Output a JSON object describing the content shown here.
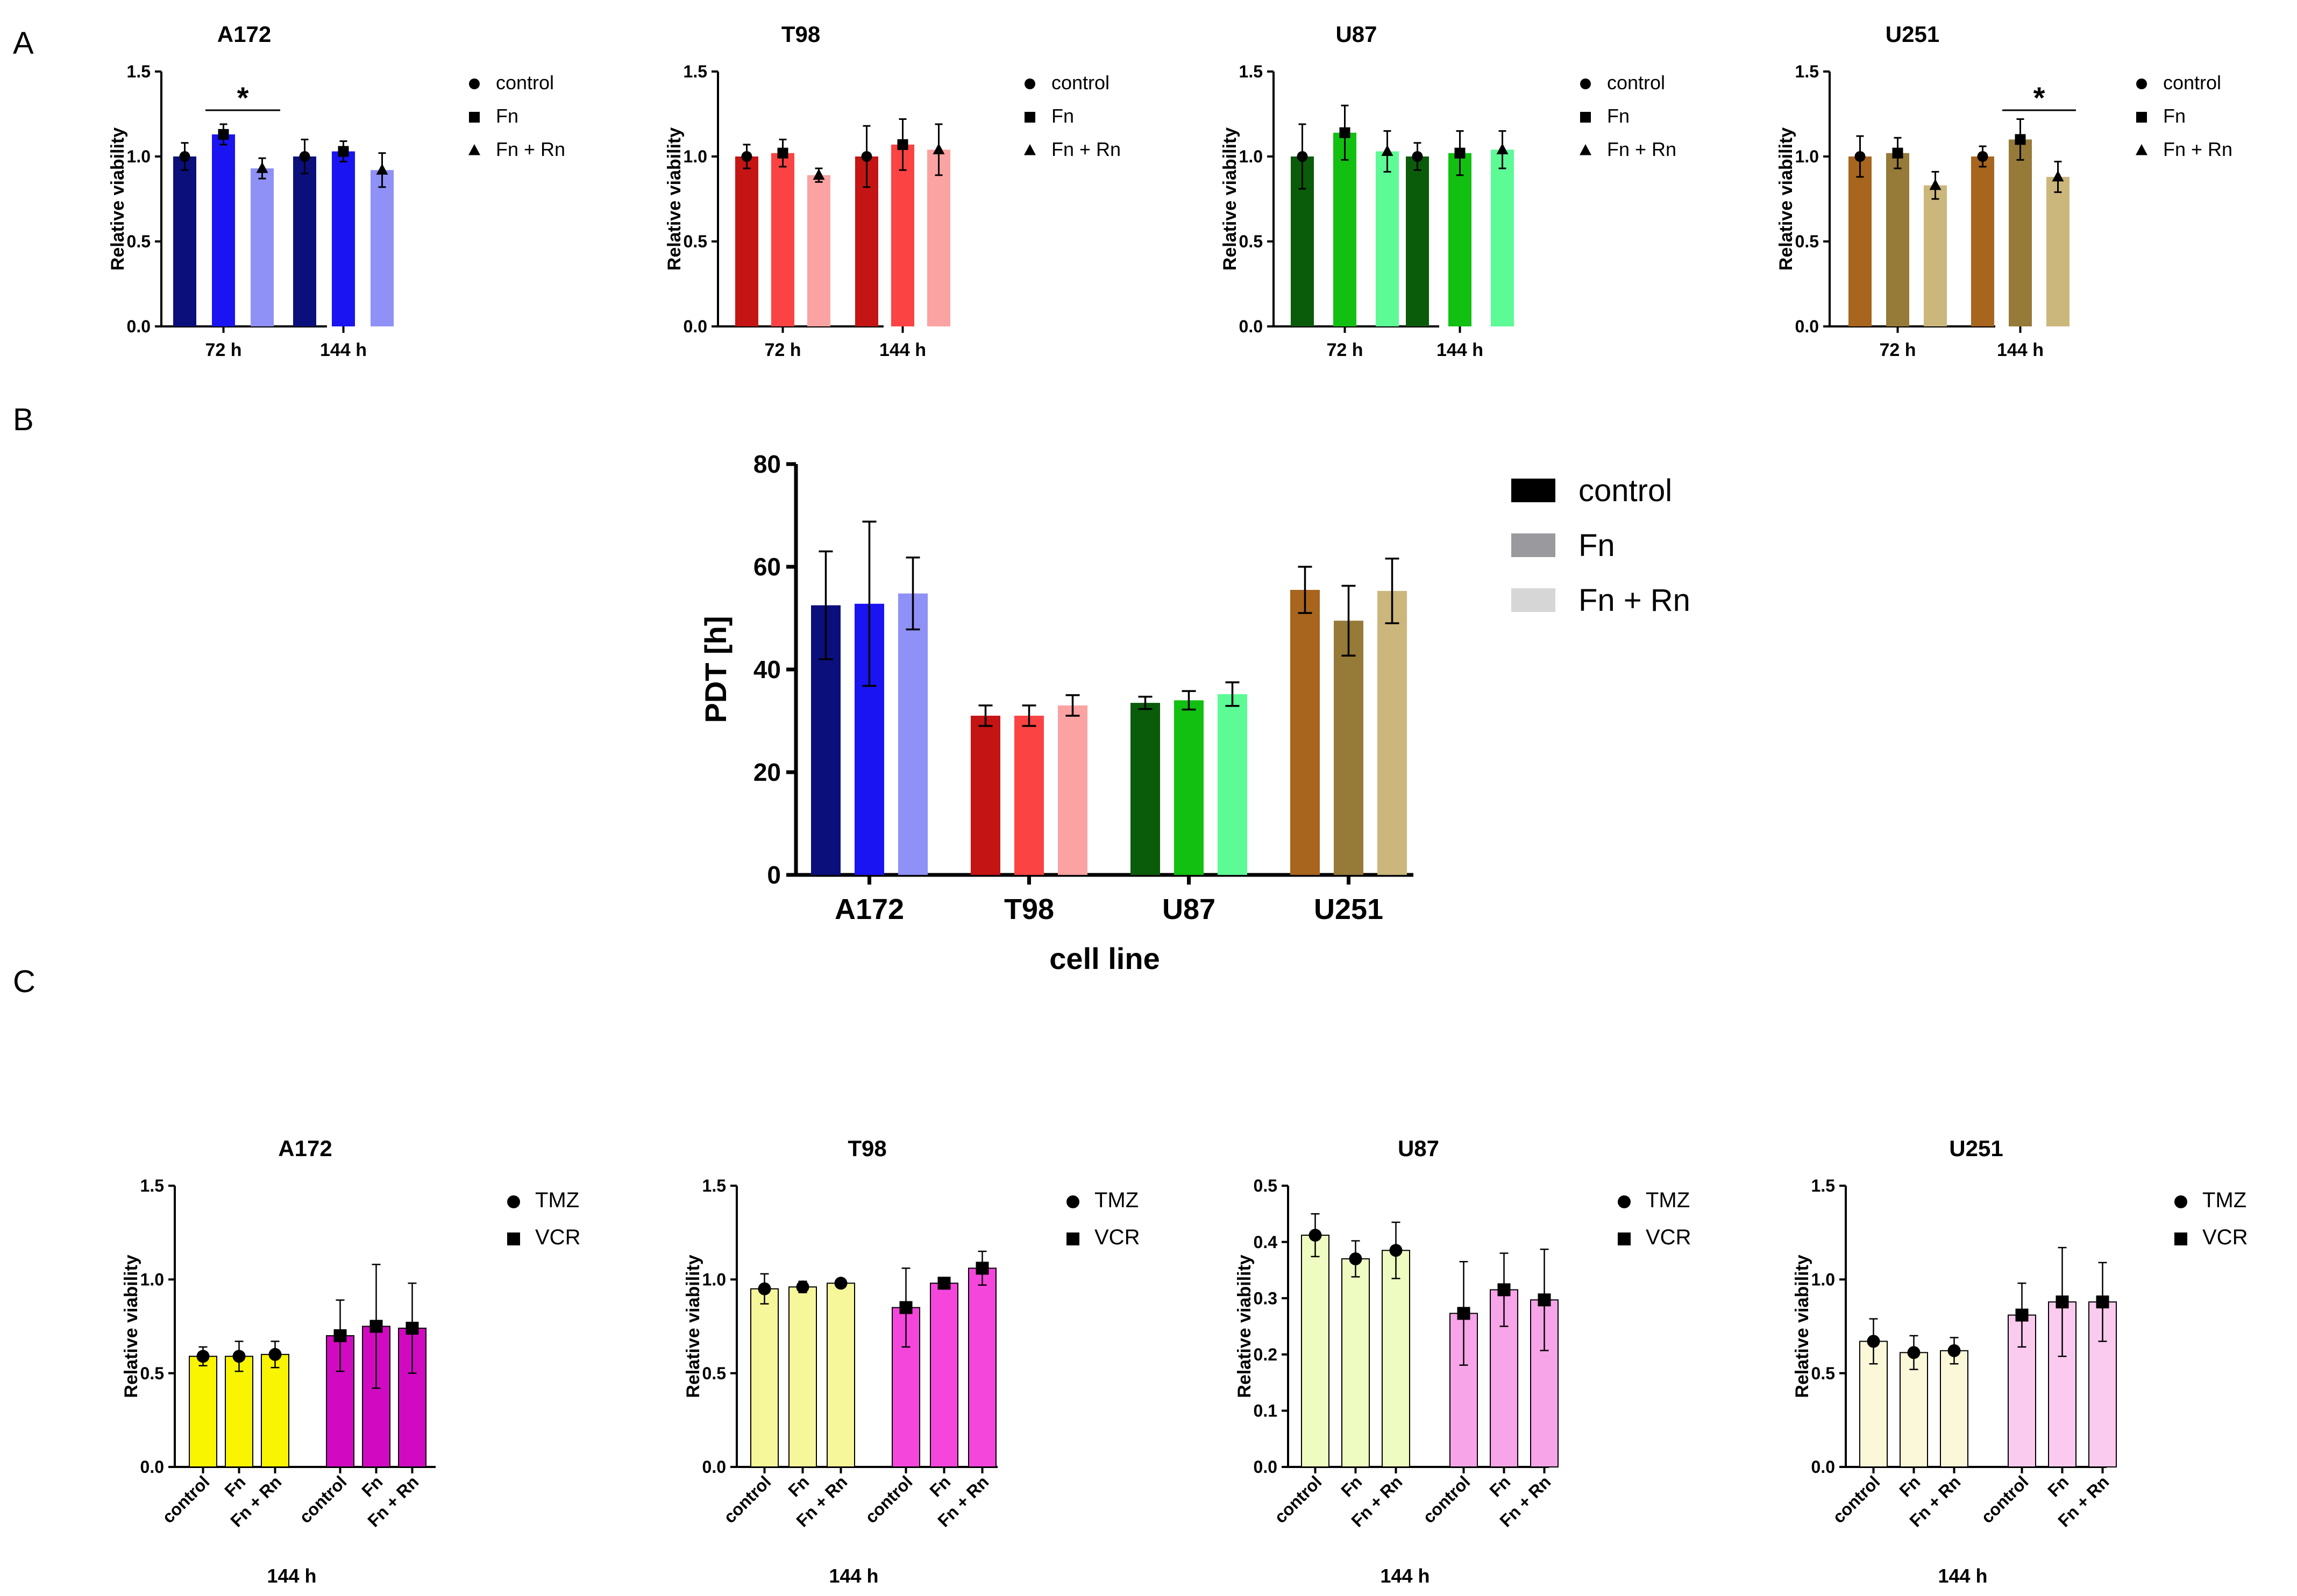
{
  "figure": {
    "panel_labels": [
      "A",
      "B",
      "C"
    ]
  },
  "colors": {
    "A172": [
      "#0b0f7c",
      "#1a14f2",
      "#8f91f7"
    ],
    "T98": [
      "#c41414",
      "#fb4343",
      "#fba2a2"
    ],
    "U87": [
      "#0a5c0a",
      "#12c012",
      "#5dfb96"
    ],
    "U251": [
      "#a8651d",
      "#957a38",
      "#cbb67c"
    ],
    "B_legend": [
      "#000000",
      "#9a9a9e",
      "#d6d6d6"
    ],
    "C_A172": [
      "#f9f400",
      "#d10ac2"
    ],
    "C_T98": [
      "#f6f79b",
      "#f546dc"
    ],
    "C_U87": [
      "#eefcc1",
      "#f7a4e8"
    ],
    "C_U251": [
      "#fbf7d9",
      "#fbcbef"
    ]
  },
  "chart_data": [
    {
      "panel": "A",
      "id": "A-A172",
      "type": "bar",
      "title": "A172",
      "ylabel": "Relative viability",
      "xlabel": "",
      "ylim": [
        0,
        1.5
      ],
      "yticks": [
        "0.0",
        "0.5",
        "1.0",
        "1.5"
      ],
      "categories": [
        "72 h",
        "144 h"
      ],
      "legend": [
        "control",
        "Fn",
        "Fn + Rn"
      ],
      "legend_markers": [
        "circle",
        "square",
        "triangle"
      ],
      "series": [
        {
          "name": "control",
          "values": [
            1.0,
            1.0
          ],
          "errors": [
            0.08,
            0.1
          ]
        },
        {
          "name": "Fn",
          "values": [
            1.13,
            1.03
          ],
          "errors": [
            0.06,
            0.06
          ]
        },
        {
          "name": "Fn + Rn",
          "values": [
            0.93,
            0.92
          ],
          "errors": [
            0.06,
            0.1
          ]
        }
      ],
      "significance": {
        "label": "*",
        "group": 0,
        "from": 1,
        "to": 2
      }
    },
    {
      "panel": "A",
      "id": "A-T98",
      "type": "bar",
      "title": "T98",
      "ylabel": "Relative viability",
      "xlabel": "",
      "ylim": [
        0,
        1.5
      ],
      "yticks": [
        "0.0",
        "0.5",
        "1.0",
        "1.5"
      ],
      "categories": [
        "72 h",
        "144 h"
      ],
      "legend": [
        "control",
        "Fn",
        "Fn + Rn"
      ],
      "legend_markers": [
        "circle",
        "square",
        "triangle"
      ],
      "series": [
        {
          "name": "control",
          "values": [
            1.0,
            1.0
          ],
          "errors": [
            0.07,
            0.18
          ]
        },
        {
          "name": "Fn",
          "values": [
            1.02,
            1.07
          ],
          "errors": [
            0.08,
            0.15
          ]
        },
        {
          "name": "Fn + Rn",
          "values": [
            0.89,
            1.04
          ],
          "errors": [
            0.04,
            0.15
          ]
        }
      ]
    },
    {
      "panel": "A",
      "id": "A-U87",
      "type": "bar",
      "title": "U87",
      "ylabel": "Relative viability",
      "xlabel": "",
      "ylim": [
        0,
        1.5
      ],
      "yticks": [
        "0.0",
        "0.5",
        "1.0",
        "1.5"
      ],
      "categories": [
        "72 h",
        "144 h"
      ],
      "legend": [
        "control",
        "Fn",
        "Fn + Rn"
      ],
      "legend_markers": [
        "circle",
        "square",
        "triangle"
      ],
      "series": [
        {
          "name": "control",
          "values": [
            1.0,
            1.0
          ],
          "errors": [
            0.19,
            0.08
          ]
        },
        {
          "name": "Fn",
          "values": [
            1.14,
            1.02
          ],
          "errors": [
            0.16,
            0.13
          ]
        },
        {
          "name": "Fn + Rn",
          "values": [
            1.03,
            1.04
          ],
          "errors": [
            0.12,
            0.11
          ]
        }
      ]
    },
    {
      "panel": "A",
      "id": "A-U251",
      "type": "bar",
      "title": "U251",
      "ylabel": "Relative viability",
      "xlabel": "",
      "ylim": [
        0,
        1.5
      ],
      "yticks": [
        "0.0",
        "0.5",
        "1.0",
        "1.5"
      ],
      "categories": [
        "72 h",
        "144 h"
      ],
      "legend": [
        "control",
        "Fn",
        "Fn + Rn"
      ],
      "legend_markers": [
        "circle",
        "square",
        "triangle"
      ],
      "series": [
        {
          "name": "control",
          "values": [
            1.0,
            1.0
          ],
          "errors": [
            0.12,
            0.06
          ]
        },
        {
          "name": "Fn",
          "values": [
            1.02,
            1.1
          ],
          "errors": [
            0.09,
            0.12
          ]
        },
        {
          "name": "Fn + Rn",
          "values": [
            0.83,
            0.88
          ],
          "errors": [
            0.08,
            0.09
          ]
        }
      ],
      "significance": {
        "label": "*",
        "group": 1,
        "from": 1,
        "to": 2
      }
    },
    {
      "panel": "B",
      "id": "B-PDT",
      "type": "bar",
      "title": "",
      "ylabel": "PDT [h]",
      "xlabel": "cell line",
      "ylim": [
        0,
        80
      ],
      "yticks": [
        "0",
        "20",
        "40",
        "60",
        "80"
      ],
      "categories": [
        "A172",
        "T98",
        "U87",
        "U251"
      ],
      "legend": [
        "control",
        "Fn",
        "Fn + Rn"
      ],
      "series": [
        {
          "name": "control",
          "values": [
            52.5,
            31.0,
            33.5,
            55.5
          ],
          "errors": [
            10.5,
            2.0,
            1.2,
            4.5
          ]
        },
        {
          "name": "Fn",
          "values": [
            52.8,
            31.0,
            34.0,
            49.5
          ],
          "errors": [
            16.0,
            2.0,
            1.8,
            6.8
          ]
        },
        {
          "name": "Fn + Rn",
          "values": [
            54.8,
            33.0,
            35.2,
            55.3
          ],
          "errors": [
            7.0,
            2.0,
            2.3,
            6.3
          ]
        }
      ]
    },
    {
      "panel": "C",
      "id": "C-A172",
      "type": "bar",
      "title": "A172",
      "ylabel": "Relative viability",
      "xlabel": "144 h",
      "ylim": [
        0,
        1.5
      ],
      "yticks": [
        "0.0",
        "0.5",
        "1.0",
        "1.5"
      ],
      "categories": [
        "control",
        "Fn",
        "Fn + Rn"
      ],
      "legend": [
        "TMZ",
        "VCR"
      ],
      "legend_markers": [
        "circle",
        "square"
      ],
      "series": [
        {
          "name": "TMZ",
          "values": [
            0.59,
            0.59,
            0.6
          ],
          "errors": [
            0.05,
            0.08,
            0.07
          ]
        },
        {
          "name": "VCR",
          "values": [
            0.7,
            0.75,
            0.74
          ],
          "errors": [
            0.19,
            0.33,
            0.24
          ]
        }
      ]
    },
    {
      "panel": "C",
      "id": "C-T98",
      "type": "bar",
      "title": "T98",
      "ylabel": "Relative viability",
      "xlabel": "144 h",
      "ylim": [
        0,
        1.5
      ],
      "yticks": [
        "0.0",
        "0.5",
        "1.0",
        "1.5"
      ],
      "categories": [
        "control",
        "Fn",
        "Fn + Rn"
      ],
      "legend": [
        "TMZ",
        "VCR"
      ],
      "legend_markers": [
        "circle",
        "square"
      ],
      "series": [
        {
          "name": "TMZ",
          "values": [
            0.95,
            0.96,
            0.98
          ],
          "errors": [
            0.08,
            0.03,
            0.02
          ]
        },
        {
          "name": "VCR",
          "values": [
            0.85,
            0.98,
            1.06
          ],
          "errors": [
            0.21,
            0.02,
            0.09
          ]
        }
      ]
    },
    {
      "panel": "C",
      "id": "C-U87",
      "type": "bar",
      "title": "U87",
      "ylabel": "Relative viability",
      "xlabel": "144 h",
      "ylim": [
        0,
        0.5
      ],
      "yticks": [
        "0.0",
        "0.1",
        "0.2",
        "0.3",
        "0.4",
        "0.5"
      ],
      "categories": [
        "control",
        "Fn",
        "Fn + Rn"
      ],
      "legend": [
        "TMZ",
        "VCR"
      ],
      "legend_markers": [
        "circle",
        "square"
      ],
      "series": [
        {
          "name": "TMZ",
          "values": [
            0.412,
            0.37,
            0.385
          ],
          "errors": [
            0.038,
            0.032,
            0.05
          ]
        },
        {
          "name": "VCR",
          "values": [
            0.273,
            0.315,
            0.297
          ],
          "errors": [
            0.092,
            0.065,
            0.09
          ]
        }
      ]
    },
    {
      "panel": "C",
      "id": "C-U251",
      "type": "bar",
      "title": "U251",
      "ylabel": "Relative viability",
      "xlabel": "144 h",
      "ylim": [
        0,
        1.5
      ],
      "yticks": [
        "0.0",
        "0.5",
        "1.0",
        "1.5"
      ],
      "categories": [
        "control",
        "Fn",
        "Fn + Rn"
      ],
      "legend": [
        "TMZ",
        "VCR"
      ],
      "legend_markers": [
        "circle",
        "square"
      ],
      "series": [
        {
          "name": "TMZ",
          "values": [
            0.67,
            0.61,
            0.62
          ],
          "errors": [
            0.12,
            0.09,
            0.07
          ]
        },
        {
          "name": "VCR",
          "values": [
            0.81,
            0.88,
            0.88
          ],
          "errors": [
            0.17,
            0.29,
            0.21
          ]
        }
      ]
    }
  ]
}
